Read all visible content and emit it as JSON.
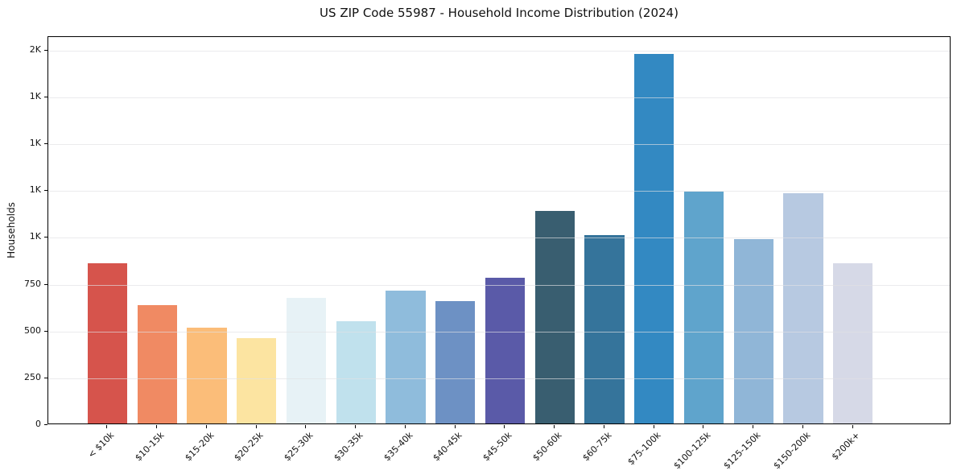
{
  "chart_data": {
    "type": "bar",
    "title": "US ZIP Code 55987 - Household Income Distribution (2024)",
    "xlabel": "",
    "ylabel": "Households",
    "ylim": [
      0,
      2072
    ],
    "grid": true,
    "legend": false,
    "background_color": "#ffffff",
    "spine_color": "#000000",
    "categories": [
      "< $10k",
      "$10-15k",
      "$15-20k",
      "$20-25k",
      "$25-30k",
      "$30-35k",
      "$35-40k",
      "$40-45k",
      "$45-50k",
      "$50-60k",
      "$60-75k",
      "$75-100k",
      "$100-125k",
      "$125-150k",
      "$150-200k",
      "$200k+"
    ],
    "values": [
      856,
      630,
      510,
      457,
      669,
      546,
      711,
      655,
      776,
      1135,
      1005,
      1973,
      1236,
      986,
      1228,
      857
    ],
    "bar_colors": [
      "#d6544c",
      "#f08a63",
      "#fbbd79",
      "#fce4a1",
      "#e7f2f6",
      "#c0e1ed",
      "#8fbcdc",
      "#6d91c4",
      "#5a5aa8",
      "#395e70",
      "#35749b",
      "#3389c2",
      "#5fa4cc",
      "#90b6d7",
      "#b7c9e1",
      "#d6d9e7"
    ],
    "yticks": [
      {
        "value": 0,
        "label": "0"
      },
      {
        "value": 250,
        "label": "250"
      },
      {
        "value": 500,
        "label": "500"
      },
      {
        "value": 750,
        "label": "750"
      },
      {
        "value": 1000,
        "label": "1K"
      },
      {
        "value": 1250,
        "label": "1K"
      },
      {
        "value": 1500,
        "label": "1K"
      },
      {
        "value": 1750,
        "label": "1K"
      },
      {
        "value": 2000,
        "label": "2K"
      }
    ]
  }
}
